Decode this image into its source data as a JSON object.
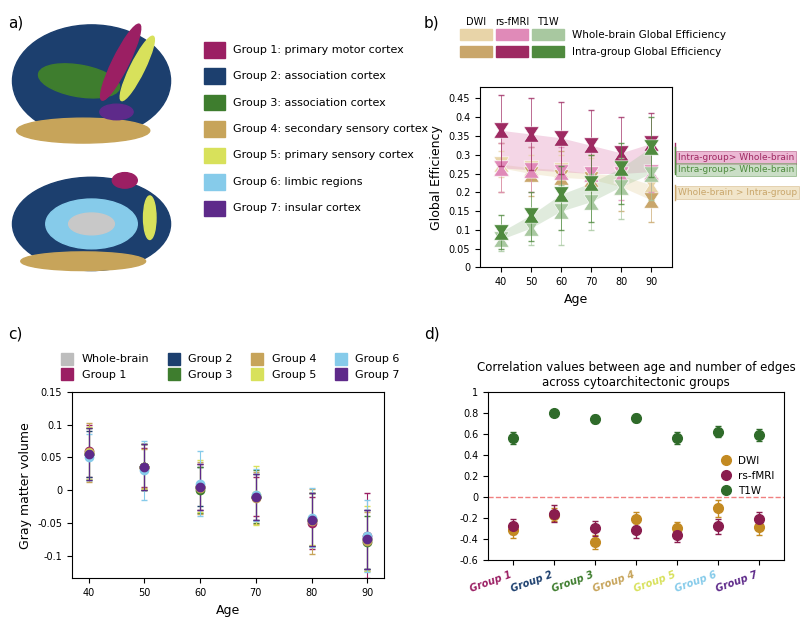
{
  "chart_data": [
    {
      "type": "legend_diagram",
      "label": "a)",
      "entries": [
        {
          "label": "Group 1: primary motor cortex",
          "color": "#9B1F63"
        },
        {
          "label": "Group 2: association cortex",
          "color": "#1C3F6E"
        },
        {
          "label": "Group 3: association cortex",
          "color": "#3E7D2E"
        },
        {
          "label": "Group 4: secondary sensory cortex",
          "color": "#C7A45A"
        },
        {
          "label": "Group 5: primary sensory cortex",
          "color": "#D8E15B"
        },
        {
          "label": "Group 6: limbic regions",
          "color": "#86CBEA"
        },
        {
          "label": "Group 7: insular cortex",
          "color": "#5E2A8A"
        }
      ]
    },
    {
      "type": "box",
      "label": "b)",
      "x_label": "Age",
      "y_label": "Global Efficiency",
      "x": [
        40,
        50,
        60,
        70,
        80,
        90
      ],
      "xlim": [
        33,
        97
      ],
      "xticks": [
        40,
        50,
        60,
        70,
        80,
        90
      ],
      "ylim": [
        0,
        0.48
      ],
      "yticks": [
        0,
        0.05,
        0.1,
        0.15,
        0.2,
        0.25,
        0.3,
        0.35,
        0.4,
        0.45
      ],
      "grid": false,
      "marker": "hourglass",
      "modalities": [
        "DWI",
        "rs-fMRI",
        "T1W"
      ],
      "measures": [
        "Whole-brain Global Efficiency",
        "Intra-group Global Efficiency"
      ],
      "series": [
        {
          "modality": "DWI",
          "measure": "Whole-brain Global Efficiency",
          "color": "#E8D4A8",
          "values": [
            0.275,
            0.265,
            0.26,
            0.25,
            0.245,
            0.22
          ],
          "whisker_low": [
            0.24,
            0.23,
            0.22,
            0.21,
            0.2,
            0.18
          ],
          "whisker_high": [
            0.31,
            0.3,
            0.3,
            0.29,
            0.28,
            0.26
          ]
        },
        {
          "modality": "DWI",
          "measure": "Intra-group Global Efficiency",
          "color": "#C9A66B",
          "values": [
            0.265,
            0.25,
            0.24,
            0.235,
            0.215,
            0.18
          ],
          "whisker_low": [
            0.2,
            0.19,
            0.18,
            0.17,
            0.15,
            0.12
          ],
          "whisker_high": [
            0.33,
            0.32,
            0.31,
            0.3,
            0.28,
            0.25
          ]
        },
        {
          "modality": "rs-fMRI",
          "measure": "Whole-brain Global Efficiency",
          "color": "#E08AB8",
          "values": [
            0.265,
            0.26,
            0.255,
            0.25,
            0.25,
            0.255
          ],
          "whisker_low": [
            0.2,
            0.2,
            0.19,
            0.19,
            0.18,
            0.2
          ],
          "whisker_high": [
            0.33,
            0.32,
            0.32,
            0.31,
            0.31,
            0.31
          ]
        },
        {
          "modality": "rs-fMRI",
          "measure": "Intra-group Global Efficiency",
          "color": "#9E2A62",
          "values": [
            0.365,
            0.355,
            0.345,
            0.325,
            0.305,
            0.33
          ],
          "whisker_low": [
            0.27,
            0.26,
            0.25,
            0.23,
            0.21,
            0.25
          ],
          "whisker_high": [
            0.46,
            0.45,
            0.44,
            0.42,
            0.4,
            0.41
          ]
        },
        {
          "modality": "T1W",
          "measure": "Whole-brain Global Efficiency",
          "color": "#A8C8A0",
          "values": [
            0.075,
            0.105,
            0.15,
            0.175,
            0.215,
            0.25
          ],
          "whisker_low": [
            0.045,
            0.06,
            0.06,
            0.1,
            0.13,
            0.18
          ],
          "whisker_high": [
            0.11,
            0.15,
            0.22,
            0.25,
            0.29,
            0.32
          ]
        },
        {
          "modality": "T1W",
          "measure": "Intra-group Global Efficiency",
          "color": "#4F8A3E",
          "values": [
            0.095,
            0.14,
            0.195,
            0.225,
            0.265,
            0.32
          ],
          "whisker_low": [
            0.05,
            0.07,
            0.1,
            0.12,
            0.17,
            0.24
          ],
          "whisker_high": [
            0.14,
            0.2,
            0.27,
            0.3,
            0.33,
            0.4
          ]
        }
      ],
      "annotations": [
        {
          "text": "Intra-group> Whole-brain",
          "modality": "rs-fMRI"
        },
        {
          "text": "Intra-group> Whole-brain",
          "modality": "T1W"
        },
        {
          "text": "Whole-brain > Intra-group",
          "modality": "DWI"
        }
      ]
    },
    {
      "type": "scatter",
      "label": "c)",
      "x_label": "Age",
      "y_label": "Gray matter volume",
      "x": [
        40,
        50,
        60,
        70,
        80,
        90
      ],
      "xlim": [
        37,
        93
      ],
      "xticks": [
        40,
        50,
        60,
        70,
        80,
        90
      ],
      "ylim": [
        -0.135,
        0.15
      ],
      "yticks": [
        -0.1,
        -0.05,
        0,
        0.05,
        0.1,
        0.15
      ],
      "grid": false,
      "legend": "lower center",
      "series": [
        {
          "name": "Whole-brain",
          "color": "#BDBDBD",
          "values": [
            0.055,
            0.035,
            0.005,
            -0.01,
            -0.045,
            -0.075
          ],
          "errors": [
            0.04,
            0.035,
            0.035,
            0.035,
            0.04,
            0.045
          ]
        },
        {
          "name": "Group 1",
          "color": "#9B1F63",
          "values": [
            0.06,
            0.035,
            0.005,
            -0.01,
            -0.05,
            -0.07
          ],
          "errors": [
            0.04,
            0.03,
            0.035,
            0.03,
            0.04,
            0.065
          ]
        },
        {
          "name": "Group 2",
          "color": "#1C3F6E",
          "values": [
            0.055,
            0.035,
            0.005,
            -0.01,
            -0.045,
            -0.075
          ],
          "errors": [
            0.035,
            0.035,
            0.03,
            0.035,
            0.04,
            0.045
          ]
        },
        {
          "name": "Group 3",
          "color": "#3E7D2E",
          "values": [
            0.055,
            0.035,
            0.0,
            -0.01,
            -0.045,
            -0.08
          ],
          "errors": [
            0.04,
            0.035,
            0.035,
            0.04,
            0.04,
            0.04
          ]
        },
        {
          "name": "Group 4",
          "color": "#C7A45A",
          "values": [
            0.058,
            0.033,
            0.003,
            -0.012,
            -0.048,
            -0.078
          ],
          "errors": [
            0.045,
            0.03,
            0.04,
            0.04,
            0.05,
            0.045
          ]
        },
        {
          "name": "Group 5",
          "color": "#D8E15B",
          "values": [
            0.057,
            0.036,
            0.006,
            -0.008,
            -0.044,
            -0.074
          ],
          "errors": [
            0.04,
            0.035,
            0.04,
            0.045,
            0.04,
            0.05
          ]
        },
        {
          "name": "Group 6",
          "color": "#86CBEA",
          "values": [
            0.05,
            0.03,
            0.01,
            -0.008,
            -0.042,
            -0.07
          ],
          "errors": [
            0.035,
            0.045,
            0.05,
            0.04,
            0.045,
            0.055
          ]
        },
        {
          "name": "Group 7",
          "color": "#5E2A8A",
          "values": [
            0.055,
            0.035,
            0.005,
            -0.01,
            -0.045,
            -0.075
          ],
          "errors": [
            0.04,
            0.035,
            0.035,
            0.035,
            0.04,
            0.045
          ]
        }
      ]
    },
    {
      "type": "scatter",
      "label": "d)",
      "title": "Correlation values between age and number of edges across cytoarchitectonic groups",
      "categories": [
        "Group 1",
        "Group 2",
        "Group 3",
        "Group 4",
        "Group 5",
        "Group 6",
        "Group 7"
      ],
      "ylim": [
        -0.6,
        1
      ],
      "yticks": [
        -0.6,
        -0.4,
        -0.2,
        0,
        0.2,
        0.4,
        0.6,
        0.8,
        1
      ],
      "reference_line": 0,
      "grid": false,
      "legend": "center right",
      "series": [
        {
          "name": "DWI",
          "color": "#C38A22",
          "values": [
            -0.32,
            -0.17,
            -0.43,
            -0.21,
            -0.3,
            -0.11,
            -0.29
          ],
          "errors": [
            0.07,
            0.06,
            0.07,
            0.07,
            0.06,
            0.08,
            0.07
          ]
        },
        {
          "name": "rs-fMRI",
          "color": "#8A1D4E",
          "values": [
            -0.28,
            -0.16,
            -0.3,
            -0.32,
            -0.36,
            -0.28,
            -0.21
          ],
          "errors": [
            0.07,
            0.08,
            0.07,
            0.07,
            0.07,
            0.07,
            0.07
          ]
        },
        {
          "name": "T1W",
          "color": "#2F6B2A",
          "values": [
            0.56,
            0.8,
            0.74,
            0.75,
            0.56,
            0.62,
            0.59
          ],
          "errors": [
            0.06,
            0.03,
            0.04,
            0.04,
            0.06,
            0.05,
            0.06
          ]
        }
      ]
    }
  ]
}
